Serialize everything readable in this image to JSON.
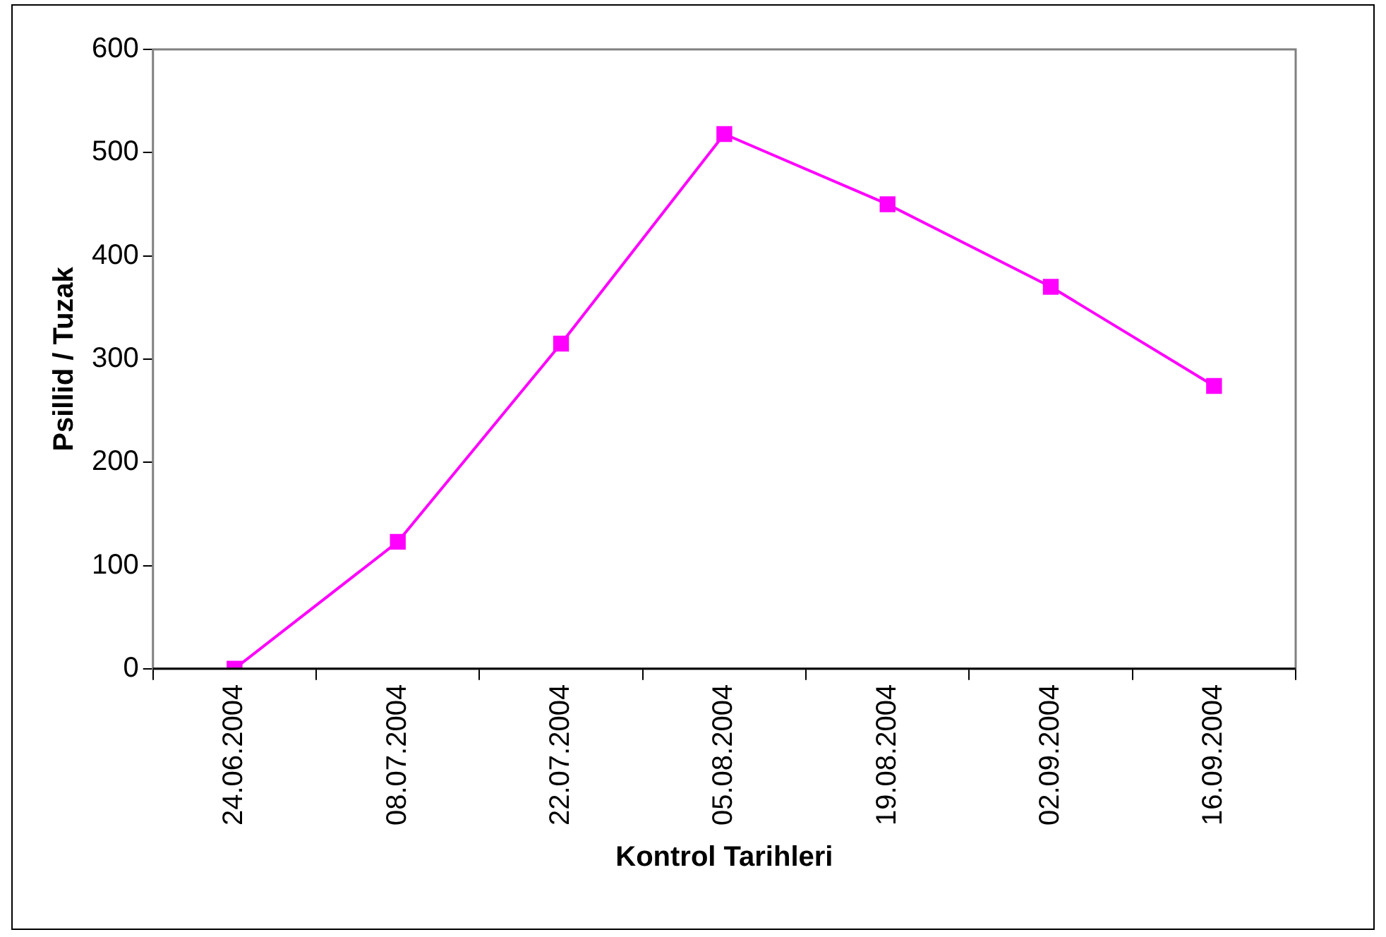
{
  "chart_data": {
    "type": "line",
    "xlabel": "Kontrol Tarihleri",
    "ylabel": "Psillid / Tuzak",
    "categories": [
      "24.06.2004",
      "08.07.2004",
      "22.07.2004",
      "05.08.2004",
      "19.08.2004",
      "02.09.2004",
      "16.09.2004"
    ],
    "series": [
      {
        "color": "#ff00ff",
        "values": [
          0,
          123,
          315,
          518,
          450,
          370,
          274
        ]
      }
    ],
    "ylim": [
      0,
      600
    ],
    "yticks": [
      0,
      100,
      200,
      300,
      400,
      500,
      600
    ],
    "grid": false,
    "legend": false,
    "marker": "square",
    "line_style": "solid"
  }
}
